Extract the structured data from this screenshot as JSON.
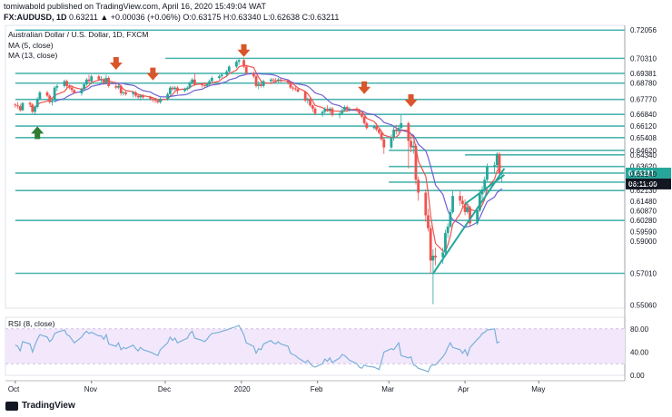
{
  "header": {
    "publish_line": "tomiwabold published on TradingView.com, April 16, 2020 15:49:04 WAT",
    "symbol": "FX:AUDUSD, 1D",
    "change": "0.63211 ▲ +0.00036 (+0.06%)",
    "ohlc": "O:0.63175 H:0.63340 L:0.62638 C:0.63211"
  },
  "footer": {
    "brand": "TradingView"
  },
  "colors": {
    "bull": "#26a69a",
    "bear": "#ef5350",
    "hline": "#4cb5b0",
    "ma5": "#ef5350",
    "ma13": "#6f5fd3",
    "rsi": "#7ab0d9",
    "rsi_band": "#f3e8fb",
    "price_tag": "#26a69a",
    "time_tag": "#131722",
    "down_arrow": "#d9552b",
    "up_arrow": "#2e7d32",
    "trendline": "#26a69a"
  },
  "chart_data": {
    "type": "candlestick",
    "title": "Australian Dollar / U.S. Dollar, 1D, FXCM",
    "legend": [
      "MA (5, close)",
      "MA (13, close)"
    ],
    "ylim": [
      0.5485,
      0.7235
    ],
    "price_scale_labels": [
      "0.72056",
      "0.70310",
      "0.69381",
      "0.68780",
      "0.67770",
      "0.66840",
      "0.66120",
      "0.65408",
      "0.64620",
      "0.64340",
      "0.63620",
      "0.63211",
      "0.63140",
      "0.62650",
      "0.62130",
      "0.61480",
      "0.60870",
      "0.60280",
      "0.59590",
      "0.59000",
      "0.57010",
      "0.55060"
    ],
    "current_price": "0.63211",
    "countdown": "06:11:00",
    "horizontal_levels": [
      {
        "price": 0.72056,
        "x_from": "Oct"
      },
      {
        "price": 0.7031,
        "x_from": "Dec"
      },
      {
        "price": 0.69381,
        "x_from": "Oct"
      },
      {
        "price": 0.6878,
        "x_from": "Oct"
      },
      {
        "price": 0.6777,
        "x_from": "Oct"
      },
      {
        "price": 0.6684,
        "x_from": "Oct"
      },
      {
        "price": 0.6612,
        "x_from": "Oct"
      },
      {
        "price": 0.65408,
        "x_from": "Oct"
      },
      {
        "price": 0.6462,
        "x_from": "Mar"
      },
      {
        "price": 0.6434,
        "x_from": "Apr"
      },
      {
        "price": 0.6362,
        "x_from": "Mar"
      },
      {
        "price": 0.63211,
        "x_from": "Oct"
      },
      {
        "price": 0.6265,
        "x_from": "Mar"
      },
      {
        "price": 0.6213,
        "x_from": "Oct"
      },
      {
        "price": 0.6028,
        "x_from": "Oct"
      },
      {
        "price": 0.5701,
        "x_from": "Oct"
      }
    ],
    "x_axis": {
      "ticks": [
        "Oct",
        "Nov",
        "Dec",
        "2020",
        "Feb",
        "Mar",
        "Apr",
        "May"
      ]
    },
    "trendlines": [
      {
        "from": {
          "date": "2020-03-19",
          "price": 0.57
        },
        "to": {
          "date": "2020-04-17",
          "price": 0.635
        }
      },
      {
        "from": {
          "date": "2020-04-01",
          "price": 0.613
        },
        "to": {
          "date": "2020-04-17",
          "price": 0.631
        }
      }
    ],
    "arrows": [
      {
        "dir": "down",
        "date": "2019-11-11",
        "price": 0.696
      },
      {
        "dir": "down",
        "date": "2019-11-26",
        "price": 0.6895
      },
      {
        "dir": "down",
        "date": "2020-01-02",
        "price": 0.704
      },
      {
        "dir": "down",
        "date": "2020-02-20",
        "price": 0.681
      },
      {
        "dir": "down",
        "date": "2020-03-10",
        "price": 0.673
      },
      {
        "dir": "up",
        "date": "2019-10-10",
        "price": 0.661
      }
    ],
    "candles": [
      [
        "2019-10-01",
        0.6745,
        0.6755,
        0.6725,
        0.674
      ],
      [
        "2019-10-02",
        0.674,
        0.676,
        0.672,
        0.6735
      ],
      [
        "2019-10-03",
        0.6735,
        0.675,
        0.67,
        0.671
      ],
      [
        "2019-10-04",
        0.671,
        0.676,
        0.6705,
        0.6755
      ],
      [
        "2019-10-07",
        0.6755,
        0.6765,
        0.673,
        0.6745
      ],
      [
        "2019-10-08",
        0.6745,
        0.6755,
        0.669,
        0.67
      ],
      [
        "2019-10-09",
        0.67,
        0.674,
        0.668,
        0.673
      ],
      [
        "2019-10-10",
        0.673,
        0.679,
        0.672,
        0.678
      ],
      [
        "2019-10-11",
        0.678,
        0.683,
        0.677,
        0.682
      ],
      [
        "2019-10-14",
        0.682,
        0.683,
        0.679,
        0.68
      ],
      [
        "2019-10-15",
        0.68,
        0.681,
        0.675,
        0.676
      ],
      [
        "2019-10-16",
        0.676,
        0.678,
        0.674,
        0.677
      ],
      [
        "2019-10-17",
        0.677,
        0.686,
        0.676,
        0.685
      ],
      [
        "2019-10-18",
        0.685,
        0.687,
        0.683,
        0.686
      ],
      [
        "2019-10-21",
        0.686,
        0.69,
        0.685,
        0.689
      ],
      [
        "2019-10-22",
        0.689,
        0.69,
        0.684,
        0.686
      ],
      [
        "2019-10-23",
        0.686,
        0.687,
        0.684,
        0.685
      ],
      [
        "2019-10-24",
        0.685,
        0.686,
        0.682,
        0.6835
      ],
      [
        "2019-10-25",
        0.6835,
        0.684,
        0.681,
        0.6815
      ],
      [
        "2019-10-28",
        0.6815,
        0.685,
        0.68,
        0.684
      ],
      [
        "2019-10-29",
        0.684,
        0.688,
        0.683,
        0.687
      ],
      [
        "2019-10-30",
        0.687,
        0.691,
        0.686,
        0.69
      ],
      [
        "2019-10-31",
        0.69,
        0.693,
        0.688,
        0.689
      ],
      [
        "2019-11-01",
        0.689,
        0.693,
        0.687,
        0.692
      ],
      [
        "2019-11-04",
        0.692,
        0.693,
        0.689,
        0.69
      ],
      [
        "2019-11-05",
        0.69,
        0.692,
        0.688,
        0.69
      ],
      [
        "2019-11-06",
        0.69,
        0.691,
        0.687,
        0.688
      ],
      [
        "2019-11-07",
        0.688,
        0.693,
        0.687,
        0.691
      ],
      [
        "2019-11-08",
        0.691,
        0.692,
        0.685,
        0.686
      ],
      [
        "2019-11-11",
        0.686,
        0.687,
        0.684,
        0.685
      ],
      [
        "2019-11-12",
        0.685,
        0.688,
        0.684,
        0.686
      ],
      [
        "2019-11-13",
        0.686,
        0.687,
        0.68,
        0.6815
      ],
      [
        "2019-11-14",
        0.6815,
        0.683,
        0.68,
        0.682
      ],
      [
        "2019-11-15",
        0.682,
        0.683,
        0.68,
        0.681
      ],
      [
        "2019-11-18",
        0.681,
        0.683,
        0.679,
        0.682
      ],
      [
        "2019-11-19",
        0.682,
        0.683,
        0.679,
        0.68
      ],
      [
        "2019-11-20",
        0.68,
        0.681,
        0.678,
        0.679
      ],
      [
        "2019-11-21",
        0.679,
        0.681,
        0.677,
        0.68
      ],
      [
        "2019-11-22",
        0.68,
        0.681,
        0.678,
        0.679
      ],
      [
        "2019-11-25",
        0.679,
        0.68,
        0.677,
        0.678
      ],
      [
        "2019-11-26",
        0.678,
        0.679,
        0.676,
        0.6775
      ],
      [
        "2019-11-27",
        0.6775,
        0.6785,
        0.6755,
        0.677
      ],
      [
        "2019-11-28",
        0.677,
        0.678,
        0.675,
        0.676
      ],
      [
        "2019-11-29",
        0.676,
        0.679,
        0.675,
        0.678
      ],
      [
        "2019-12-02",
        0.678,
        0.682,
        0.677,
        0.681
      ],
      [
        "2019-12-03",
        0.681,
        0.686,
        0.68,
        0.685
      ],
      [
        "2019-12-04",
        0.685,
        0.686,
        0.683,
        0.684
      ],
      [
        "2019-12-05",
        0.684,
        0.686,
        0.683,
        0.685
      ],
      [
        "2019-12-06",
        0.685,
        0.686,
        0.681,
        0.683
      ],
      [
        "2019-12-09",
        0.683,
        0.685,
        0.682,
        0.684
      ],
      [
        "2019-12-10",
        0.684,
        0.686,
        0.683,
        0.685
      ],
      [
        "2019-12-11",
        0.685,
        0.689,
        0.684,
        0.688
      ],
      [
        "2019-12-12",
        0.688,
        0.691,
        0.687,
        0.69
      ],
      [
        "2019-12-13",
        0.69,
        0.694,
        0.686,
        0.687
      ],
      [
        "2019-12-16",
        0.687,
        0.688,
        0.685,
        0.6865
      ],
      [
        "2019-12-17",
        0.6865,
        0.688,
        0.685,
        0.686
      ],
      [
        "2019-12-18",
        0.686,
        0.688,
        0.685,
        0.687
      ],
      [
        "2019-12-19",
        0.687,
        0.69,
        0.686,
        0.689
      ],
      [
        "2019-12-20",
        0.689,
        0.692,
        0.688,
        0.691
      ],
      [
        "2019-12-23",
        0.691,
        0.693,
        0.69,
        0.692
      ],
      [
        "2019-12-24",
        0.692,
        0.694,
        0.691,
        0.693
      ],
      [
        "2019-12-26",
        0.693,
        0.696,
        0.692,
        0.695
      ],
      [
        "2019-12-27",
        0.695,
        0.699,
        0.694,
        0.698
      ],
      [
        "2019-12-30",
        0.698,
        0.702,
        0.697,
        0.701
      ],
      [
        "2019-12-31",
        0.701,
        0.703,
        0.699,
        0.702
      ],
      [
        "2020-01-02",
        0.702,
        0.703,
        0.697,
        0.698
      ],
      [
        "2020-01-03",
        0.698,
        0.699,
        0.693,
        0.694
      ],
      [
        "2020-01-06",
        0.694,
        0.695,
        0.691,
        0.692
      ],
      [
        "2020-01-07",
        0.692,
        0.693,
        0.685,
        0.686
      ],
      [
        "2020-01-08",
        0.686,
        0.689,
        0.684,
        0.687
      ],
      [
        "2020-01-09",
        0.687,
        0.689,
        0.685,
        0.686
      ],
      [
        "2020-01-10",
        0.686,
        0.69,
        0.685,
        0.689
      ],
      [
        "2020-01-13",
        0.689,
        0.691,
        0.688,
        0.69
      ],
      [
        "2020-01-14",
        0.69,
        0.691,
        0.688,
        0.6895
      ],
      [
        "2020-01-15",
        0.6895,
        0.691,
        0.688,
        0.689
      ],
      [
        "2020-01-16",
        0.689,
        0.691,
        0.688,
        0.69
      ],
      [
        "2020-01-17",
        0.69,
        0.691,
        0.688,
        0.689
      ],
      [
        "2020-01-20",
        0.689,
        0.69,
        0.687,
        0.688
      ],
      [
        "2020-01-21",
        0.688,
        0.689,
        0.684,
        0.685
      ],
      [
        "2020-01-22",
        0.685,
        0.686,
        0.683,
        0.6845
      ],
      [
        "2020-01-23",
        0.6845,
        0.686,
        0.683,
        0.684
      ],
      [
        "2020-01-24",
        0.684,
        0.685,
        0.682,
        0.6825
      ],
      [
        "2020-01-27",
        0.6825,
        0.683,
        0.676,
        0.677
      ],
      [
        "2020-01-28",
        0.677,
        0.679,
        0.675,
        0.678
      ],
      [
        "2020-01-29",
        0.678,
        0.679,
        0.673,
        0.674
      ],
      [
        "2020-01-30",
        0.674,
        0.675,
        0.67,
        0.672
      ],
      [
        "2020-01-31",
        0.672,
        0.673,
        0.668,
        0.669
      ],
      [
        "2020-02-03",
        0.669,
        0.671,
        0.667,
        0.67
      ],
      [
        "2020-02-04",
        0.67,
        0.673,
        0.669,
        0.672
      ],
      [
        "2020-02-05",
        0.672,
        0.674,
        0.67,
        0.671
      ],
      [
        "2020-02-06",
        0.671,
        0.673,
        0.669,
        0.672
      ],
      [
        "2020-02-07",
        0.672,
        0.673,
        0.667,
        0.668
      ],
      [
        "2020-02-10",
        0.668,
        0.67,
        0.666,
        0.669
      ],
      [
        "2020-02-11",
        0.669,
        0.672,
        0.668,
        0.671
      ],
      [
        "2020-02-12",
        0.671,
        0.674,
        0.67,
        0.673
      ],
      [
        "2020-02-13",
        0.673,
        0.674,
        0.67,
        0.6715
      ],
      [
        "2020-02-14",
        0.6715,
        0.673,
        0.67,
        0.672
      ],
      [
        "2020-02-17",
        0.672,
        0.673,
        0.67,
        0.671
      ],
      [
        "2020-02-18",
        0.671,
        0.672,
        0.668,
        0.669
      ],
      [
        "2020-02-19",
        0.669,
        0.67,
        0.666,
        0.667
      ],
      [
        "2020-02-20",
        0.667,
        0.668,
        0.662,
        0.663
      ],
      [
        "2020-02-21",
        0.663,
        0.664,
        0.659,
        0.66
      ],
      [
        "2020-02-24",
        0.66,
        0.662,
        0.659,
        0.661
      ],
      [
        "2020-02-25",
        0.661,
        0.663,
        0.658,
        0.659
      ],
      [
        "2020-02-26",
        0.659,
        0.66,
        0.656,
        0.657
      ],
      [
        "2020-02-27",
        0.657,
        0.658,
        0.652,
        0.653
      ],
      [
        "2020-02-28",
        0.653,
        0.654,
        0.644,
        0.648
      ],
      [
        "2020-03-02",
        0.648,
        0.656,
        0.647,
        0.654
      ],
      [
        "2020-03-03",
        0.654,
        0.661,
        0.652,
        0.659
      ],
      [
        "2020-03-04",
        0.659,
        0.662,
        0.656,
        0.658
      ],
      [
        "2020-03-05",
        0.658,
        0.662,
        0.657,
        0.66
      ],
      [
        "2020-03-06",
        0.66,
        0.668,
        0.659,
        0.663
      ],
      [
        "2020-03-09",
        0.663,
        0.664,
        0.635,
        0.652
      ],
      [
        "2020-03-10",
        0.652,
        0.656,
        0.645,
        0.648
      ],
      [
        "2020-03-11",
        0.648,
        0.652,
        0.644,
        0.649
      ],
      [
        "2020-03-12",
        0.649,
        0.65,
        0.625,
        0.628
      ],
      [
        "2020-03-13",
        0.628,
        0.63,
        0.615,
        0.62
      ],
      [
        "2020-03-16",
        0.62,
        0.622,
        0.602,
        0.606
      ],
      [
        "2020-03-17",
        0.606,
        0.61,
        0.596,
        0.598
      ],
      [
        "2020-03-18",
        0.598,
        0.6,
        0.57,
        0.578
      ],
      [
        "2020-03-19",
        0.578,
        0.585,
        0.551,
        0.581
      ],
      [
        "2020-03-20",
        0.581,
        0.586,
        0.575,
        0.58
      ],
      [
        "2020-03-23",
        0.58,
        0.586,
        0.576,
        0.583
      ],
      [
        "2020-03-24",
        0.583,
        0.597,
        0.582,
        0.595
      ],
      [
        "2020-03-25",
        0.595,
        0.601,
        0.592,
        0.599
      ],
      [
        "2020-03-26",
        0.599,
        0.61,
        0.598,
        0.608
      ],
      [
        "2020-03-27",
        0.608,
        0.621,
        0.607,
        0.618
      ],
      [
        "2020-03-30",
        0.618,
        0.621,
        0.612,
        0.615
      ],
      [
        "2020-03-31",
        0.615,
        0.618,
        0.61,
        0.613
      ],
      [
        "2020-04-01",
        0.613,
        0.616,
        0.606,
        0.608
      ],
      [
        "2020-04-02",
        0.608,
        0.613,
        0.607,
        0.611
      ],
      [
        "2020-04-03",
        0.611,
        0.612,
        0.599,
        0.601
      ],
      [
        "2020-04-06",
        0.601,
        0.611,
        0.6,
        0.609
      ],
      [
        "2020-04-07",
        0.609,
        0.622,
        0.608,
        0.619
      ],
      [
        "2020-04-08",
        0.619,
        0.624,
        0.616,
        0.622
      ],
      [
        "2020-04-09",
        0.622,
        0.63,
        0.62,
        0.628
      ],
      [
        "2020-04-10",
        0.628,
        0.638,
        0.627,
        0.636
      ],
      [
        "2020-04-13",
        0.636,
        0.639,
        0.632,
        0.637
      ],
      [
        "2020-04-14",
        0.637,
        0.645,
        0.635,
        0.644
      ],
      [
        "2020-04-15",
        0.644,
        0.645,
        0.628,
        0.632
      ],
      [
        "2020-04-16",
        0.6318,
        0.6334,
        0.6264,
        0.6321
      ]
    ],
    "rsi": {
      "label": "RSI (8, close)",
      "ylim": [
        0,
        100
      ],
      "ticks": [
        "80.00",
        "40.00",
        "0.00"
      ],
      "band": [
        20,
        80
      ],
      "values": [
        52,
        50,
        42,
        58,
        54,
        40,
        52,
        62,
        70,
        66,
        58,
        62,
        72,
        74,
        78,
        70,
        68,
        62,
        56,
        66,
        72,
        76,
        72,
        74,
        68,
        68,
        62,
        70,
        54,
        50,
        56,
        44,
        48,
        46,
        52,
        46,
        42,
        48,
        44,
        40,
        38,
        36,
        34,
        44,
        56,
        66,
        60,
        64,
        56,
        62,
        64,
        72,
        76,
        64,
        60,
        58,
        62,
        68,
        72,
        74,
        76,
        78,
        80,
        84,
        86,
        70,
        56,
        50,
        38,
        46,
        44,
        54,
        60,
        56,
        54,
        58,
        54,
        50,
        38,
        36,
        34,
        30,
        22,
        26,
        20,
        16,
        14,
        20,
        28,
        24,
        30,
        22,
        30,
        36,
        34,
        30,
        26,
        20,
        14,
        12,
        18,
        16,
        14,
        12,
        10,
        24,
        40,
        46,
        44,
        50,
        56,
        34,
        30,
        32,
        18,
        16,
        12,
        8,
        6,
        16,
        18,
        18,
        32,
        38,
        48,
        56,
        48,
        44,
        38,
        44,
        34,
        48,
        62,
        66,
        72,
        74,
        78,
        80,
        56,
        58
      ]
    }
  }
}
